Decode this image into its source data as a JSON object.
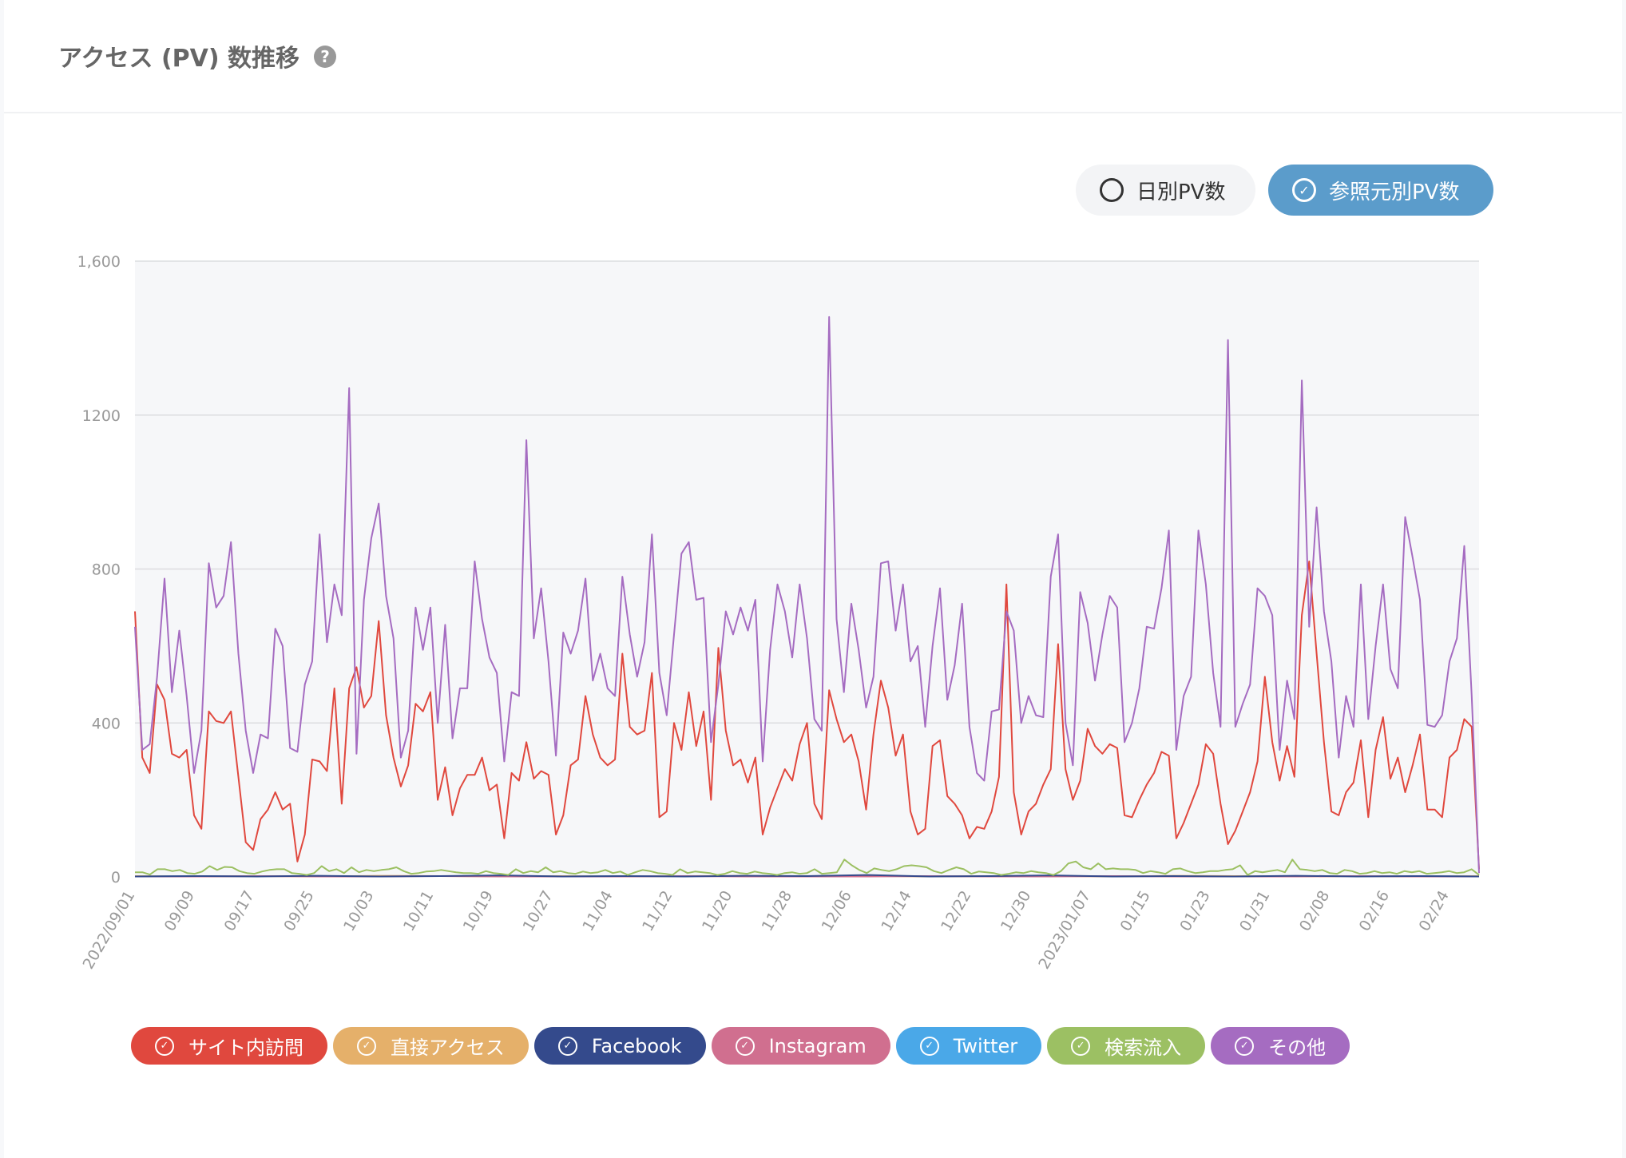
{
  "header": {
    "title": "アクセス (PV) 数推移",
    "help_icon": "question-circle-icon"
  },
  "toggles": [
    {
      "label": "日別PV数",
      "selected": false
    },
    {
      "label": "参照元別PV数",
      "selected": true
    }
  ],
  "chart_data": {
    "type": "line",
    "title": "アクセス (PV) 数推移",
    "xlabel": "",
    "ylabel": "",
    "ylim": [
      0,
      1600
    ],
    "y_ticks": [
      "0",
      "400",
      "800",
      "1200",
      "1,600"
    ],
    "y_tick_values": [
      0,
      400,
      800,
      1200,
      1600
    ],
    "x_tick_labels": [
      "2022/09/01",
      "09/09",
      "09/17",
      "09/25",
      "10/03",
      "10/11",
      "10/19",
      "10/27",
      "11/04",
      "11/12",
      "11/20",
      "11/28",
      "12/06",
      "12/14",
      "12/22",
      "12/30",
      "2023/01/07",
      "01/15",
      "01/23",
      "01/31",
      "02/08",
      "02/16",
      "02/24"
    ],
    "x_days": 181,
    "grid": true,
    "legend_placement": "bottom",
    "series": [
      {
        "name": "サイト内訪問",
        "color": "#e0483e",
        "values": [
          690,
          310,
          270,
          500,
          460,
          320,
          310,
          330,
          160,
          125,
          430,
          405,
          400,
          430,
          260,
          90,
          70,
          150,
          175,
          220,
          175,
          190,
          40,
          110,
          305,
          300,
          275,
          490,
          190,
          490,
          545,
          440,
          470,
          665,
          420,
          310,
          235,
          290,
          450,
          430,
          480,
          200,
          285,
          160,
          230,
          265,
          265,
          310,
          225,
          240,
          100,
          270,
          250,
          350,
          255,
          275,
          265,
          110,
          160,
          290,
          305,
          470,
          370,
          310,
          290,
          305,
          580,
          390,
          370,
          380,
          530,
          155,
          170,
          400,
          330,
          480,
          340,
          430,
          200,
          595,
          380,
          290,
          305,
          245,
          310,
          110,
          180,
          230,
          280,
          250,
          345,
          400,
          190,
          150,
          485,
          410,
          350,
          370,
          300,
          175,
          370,
          510,
          440,
          315,
          370,
          170,
          110,
          125,
          340,
          355,
          210,
          190,
          160,
          100,
          130,
          125,
          170,
          260,
          760,
          220,
          110,
          170,
          190,
          240,
          280,
          605,
          280,
          200,
          250,
          385,
          340,
          320,
          345,
          335,
          160,
          155,
          200,
          240,
          270,
          325,
          315,
          100,
          140,
          190,
          240,
          345,
          320,
          190,
          85,
          120,
          170,
          220,
          300,
          520,
          350,
          250,
          340,
          260,
          680,
          820,
          580,
          350,
          170,
          160,
          220,
          245,
          355,
          155,
          330,
          415,
          255,
          310,
          220,
          290,
          370,
          175,
          175,
          155,
          310,
          330,
          410,
          390,
          20
        ]
      },
      {
        "name": "直接アクセス",
        "color": "#e5b06a",
        "values": [
          2,
          1,
          2,
          1,
          3,
          2,
          1,
          2,
          1,
          2,
          3,
          1,
          2,
          1,
          2,
          2,
          1,
          3,
          2,
          1,
          2,
          1,
          2
        ]
      },
      {
        "name": "Facebook",
        "color": "#344a8c",
        "values": [
          1,
          2,
          1,
          3,
          1,
          2,
          4,
          1,
          2,
          1,
          3,
          2,
          5,
          1,
          2,
          4,
          1,
          2,
          1,
          3,
          1,
          2,
          1
        ]
      },
      {
        "name": "Instagram",
        "color": "#d06f8f",
        "values": [
          1,
          1,
          2,
          1,
          1,
          2,
          1,
          1,
          1,
          2,
          1,
          1,
          1,
          2,
          1,
          1,
          2,
          1,
          1,
          1,
          2,
          1,
          1
        ]
      },
      {
        "name": "Twitter",
        "color": "#4aa8e8",
        "values": [
          2,
          2,
          2,
          2,
          2,
          2,
          2,
          2,
          2,
          2,
          2,
          2,
          2,
          2,
          2,
          2,
          2,
          2,
          2,
          2,
          2,
          2,
          2
        ]
      },
      {
        "name": "検索流入",
        "color": "#9cc063",
        "values": [
          12,
          12,
          6,
          20,
          20,
          15,
          18,
          10,
          8,
          14,
          28,
          18,
          26,
          25,
          15,
          10,
          8,
          14,
          18,
          20,
          20,
          10,
          8,
          5,
          10,
          28,
          15,
          20,
          10,
          25,
          12,
          18,
          15,
          18,
          20,
          25,
          15,
          8,
          10,
          14,
          15,
          18,
          15,
          12,
          10,
          10,
          8,
          15,
          10,
          8,
          5,
          20,
          10,
          15,
          12,
          25,
          12,
          15,
          10,
          8,
          14,
          10,
          12,
          18,
          10,
          14,
          5,
          12,
          18,
          15,
          10,
          8,
          5,
          20,
          10,
          14,
          12,
          10,
          5,
          8,
          15,
          10,
          8,
          14,
          10,
          8,
          5,
          10,
          12,
          8,
          10,
          20,
          8,
          10,
          12,
          45,
          30,
          18,
          10,
          22,
          18,
          15,
          20,
          28,
          30,
          28,
          25,
          15,
          10,
          18,
          25,
          20,
          8,
          14,
          12,
          10,
          5,
          8,
          12,
          10,
          15,
          12,
          10,
          5,
          15,
          35,
          40,
          25,
          20,
          35,
          20,
          22,
          20,
          20,
          18,
          10,
          15,
          12,
          8,
          20,
          22,
          15,
          10,
          12,
          15,
          15,
          18,
          20,
          30,
          5,
          15,
          12,
          15,
          18,
          12,
          45,
          20,
          18,
          15,
          18,
          10,
          8,
          18,
          15,
          8,
          10,
          15,
          10,
          12,
          8,
          15,
          12,
          15,
          8,
          10,
          12,
          15,
          10,
          12,
          20,
          5
        ]
      },
      {
        "name": "その他",
        "color": "#a56cc1",
        "values": [
          650,
          330,
          345,
          520,
          775,
          480,
          640,
          470,
          270,
          380,
          815,
          700,
          730,
          870,
          580,
          380,
          270,
          370,
          360,
          645,
          600,
          335,
          325,
          500,
          560,
          890,
          610,
          760,
          680,
          1270,
          320,
          720,
          880,
          970,
          730,
          620,
          310,
          380,
          700,
          590,
          700,
          400,
          655,
          360,
          490,
          490,
          820,
          670,
          570,
          530,
          300,
          480,
          470,
          1135,
          620,
          750,
          560,
          315,
          635,
          580,
          640,
          775,
          510,
          580,
          490,
          470,
          780,
          630,
          520,
          610,
          890,
          530,
          420,
          630,
          840,
          870,
          720,
          725,
          350,
          500,
          690,
          630,
          700,
          640,
          720,
          300,
          590,
          760,
          690,
          570,
          760,
          620,
          410,
          380,
          1455,
          670,
          480,
          710,
          590,
          440,
          520,
          815,
          820,
          640,
          760,
          560,
          600,
          390,
          600,
          750,
          460,
          550,
          710,
          390,
          270,
          250,
          430,
          435,
          690,
          640,
          400,
          470,
          420,
          415,
          780,
          890,
          400,
          290,
          740,
          660,
          510,
          630,
          730,
          700,
          350,
          400,
          490,
          650,
          645,
          750,
          900,
          330,
          470,
          520,
          900,
          760,
          530,
          390,
          1395,
          390,
          450,
          500,
          750,
          730,
          680,
          330,
          510,
          410,
          1290,
          650,
          960,
          690,
          560,
          310,
          470,
          390,
          760,
          410,
          600,
          760,
          540,
          490,
          935,
          830,
          720,
          395,
          390,
          420,
          560,
          620,
          860,
          470,
          10
        ]
      }
    ]
  }
}
